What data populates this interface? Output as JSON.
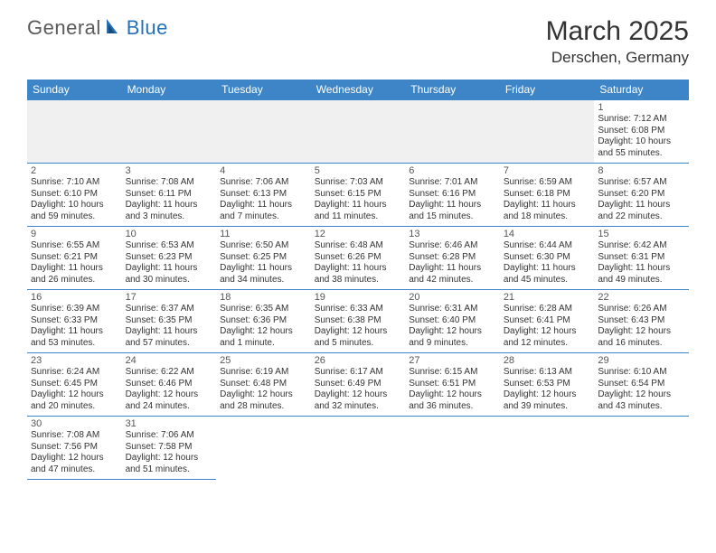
{
  "logo": {
    "text1": "General",
    "text2": "Blue"
  },
  "title": "March 2025",
  "location": "Derschen, Germany",
  "colors": {
    "header_bg": "#3d85c6",
    "header_text": "#ffffff",
    "border": "#3d85c6",
    "body_text": "#333333",
    "logo_gray": "#5a5a5a",
    "logo_blue": "#2571b8",
    "empty_bg": "#f0f0f0"
  },
  "day_headers": [
    "Sunday",
    "Monday",
    "Tuesday",
    "Wednesday",
    "Thursday",
    "Friday",
    "Saturday"
  ],
  "weeks": [
    [
      null,
      null,
      null,
      null,
      null,
      null,
      {
        "n": "1",
        "sr": "Sunrise: 7:12 AM",
        "ss": "Sunset: 6:08 PM",
        "dl": "Daylight: 10 hours and 55 minutes."
      }
    ],
    [
      {
        "n": "2",
        "sr": "Sunrise: 7:10 AM",
        "ss": "Sunset: 6:10 PM",
        "dl": "Daylight: 10 hours and 59 minutes."
      },
      {
        "n": "3",
        "sr": "Sunrise: 7:08 AM",
        "ss": "Sunset: 6:11 PM",
        "dl": "Daylight: 11 hours and 3 minutes."
      },
      {
        "n": "4",
        "sr": "Sunrise: 7:06 AM",
        "ss": "Sunset: 6:13 PM",
        "dl": "Daylight: 11 hours and 7 minutes."
      },
      {
        "n": "5",
        "sr": "Sunrise: 7:03 AM",
        "ss": "Sunset: 6:15 PM",
        "dl": "Daylight: 11 hours and 11 minutes."
      },
      {
        "n": "6",
        "sr": "Sunrise: 7:01 AM",
        "ss": "Sunset: 6:16 PM",
        "dl": "Daylight: 11 hours and 15 minutes."
      },
      {
        "n": "7",
        "sr": "Sunrise: 6:59 AM",
        "ss": "Sunset: 6:18 PM",
        "dl": "Daylight: 11 hours and 18 minutes."
      },
      {
        "n": "8",
        "sr": "Sunrise: 6:57 AM",
        "ss": "Sunset: 6:20 PM",
        "dl": "Daylight: 11 hours and 22 minutes."
      }
    ],
    [
      {
        "n": "9",
        "sr": "Sunrise: 6:55 AM",
        "ss": "Sunset: 6:21 PM",
        "dl": "Daylight: 11 hours and 26 minutes."
      },
      {
        "n": "10",
        "sr": "Sunrise: 6:53 AM",
        "ss": "Sunset: 6:23 PM",
        "dl": "Daylight: 11 hours and 30 minutes."
      },
      {
        "n": "11",
        "sr": "Sunrise: 6:50 AM",
        "ss": "Sunset: 6:25 PM",
        "dl": "Daylight: 11 hours and 34 minutes."
      },
      {
        "n": "12",
        "sr": "Sunrise: 6:48 AM",
        "ss": "Sunset: 6:26 PM",
        "dl": "Daylight: 11 hours and 38 minutes."
      },
      {
        "n": "13",
        "sr": "Sunrise: 6:46 AM",
        "ss": "Sunset: 6:28 PM",
        "dl": "Daylight: 11 hours and 42 minutes."
      },
      {
        "n": "14",
        "sr": "Sunrise: 6:44 AM",
        "ss": "Sunset: 6:30 PM",
        "dl": "Daylight: 11 hours and 45 minutes."
      },
      {
        "n": "15",
        "sr": "Sunrise: 6:42 AM",
        "ss": "Sunset: 6:31 PM",
        "dl": "Daylight: 11 hours and 49 minutes."
      }
    ],
    [
      {
        "n": "16",
        "sr": "Sunrise: 6:39 AM",
        "ss": "Sunset: 6:33 PM",
        "dl": "Daylight: 11 hours and 53 minutes."
      },
      {
        "n": "17",
        "sr": "Sunrise: 6:37 AM",
        "ss": "Sunset: 6:35 PM",
        "dl": "Daylight: 11 hours and 57 minutes."
      },
      {
        "n": "18",
        "sr": "Sunrise: 6:35 AM",
        "ss": "Sunset: 6:36 PM",
        "dl": "Daylight: 12 hours and 1 minute."
      },
      {
        "n": "19",
        "sr": "Sunrise: 6:33 AM",
        "ss": "Sunset: 6:38 PM",
        "dl": "Daylight: 12 hours and 5 minutes."
      },
      {
        "n": "20",
        "sr": "Sunrise: 6:31 AM",
        "ss": "Sunset: 6:40 PM",
        "dl": "Daylight: 12 hours and 9 minutes."
      },
      {
        "n": "21",
        "sr": "Sunrise: 6:28 AM",
        "ss": "Sunset: 6:41 PM",
        "dl": "Daylight: 12 hours and 12 minutes."
      },
      {
        "n": "22",
        "sr": "Sunrise: 6:26 AM",
        "ss": "Sunset: 6:43 PM",
        "dl": "Daylight: 12 hours and 16 minutes."
      }
    ],
    [
      {
        "n": "23",
        "sr": "Sunrise: 6:24 AM",
        "ss": "Sunset: 6:45 PM",
        "dl": "Daylight: 12 hours and 20 minutes."
      },
      {
        "n": "24",
        "sr": "Sunrise: 6:22 AM",
        "ss": "Sunset: 6:46 PM",
        "dl": "Daylight: 12 hours and 24 minutes."
      },
      {
        "n": "25",
        "sr": "Sunrise: 6:19 AM",
        "ss": "Sunset: 6:48 PM",
        "dl": "Daylight: 12 hours and 28 minutes."
      },
      {
        "n": "26",
        "sr": "Sunrise: 6:17 AM",
        "ss": "Sunset: 6:49 PM",
        "dl": "Daylight: 12 hours and 32 minutes."
      },
      {
        "n": "27",
        "sr": "Sunrise: 6:15 AM",
        "ss": "Sunset: 6:51 PM",
        "dl": "Daylight: 12 hours and 36 minutes."
      },
      {
        "n": "28",
        "sr": "Sunrise: 6:13 AM",
        "ss": "Sunset: 6:53 PM",
        "dl": "Daylight: 12 hours and 39 minutes."
      },
      {
        "n": "29",
        "sr": "Sunrise: 6:10 AM",
        "ss": "Sunset: 6:54 PM",
        "dl": "Daylight: 12 hours and 43 minutes."
      }
    ],
    [
      {
        "n": "30",
        "sr": "Sunrise: 7:08 AM",
        "ss": "Sunset: 7:56 PM",
        "dl": "Daylight: 12 hours and 47 minutes."
      },
      {
        "n": "31",
        "sr": "Sunrise: 7:06 AM",
        "ss": "Sunset: 7:58 PM",
        "dl": "Daylight: 12 hours and 51 minutes."
      },
      null,
      null,
      null,
      null,
      null
    ]
  ]
}
